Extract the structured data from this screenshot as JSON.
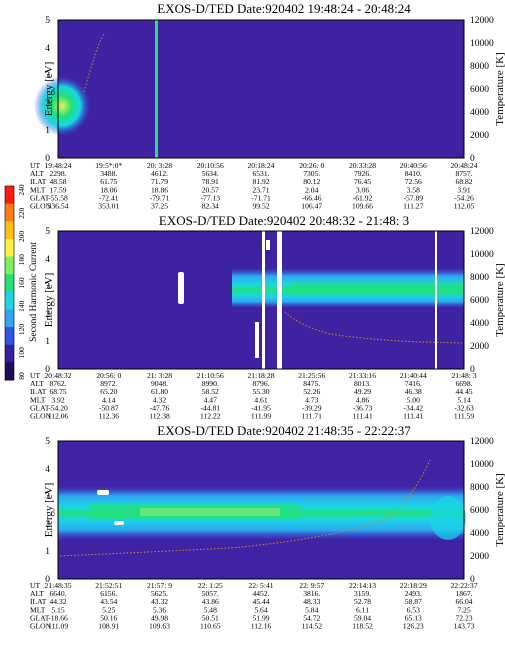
{
  "colors": {
    "background": "#3a1d9a",
    "noise": "#4b2db3",
    "dark_blue": "#2c1480",
    "blue": "#2f55e8",
    "cyan": "#19d6e6",
    "green": "#22e07a",
    "yellow": "#e6f25a",
    "white": "#ffffff",
    "temperature_trace": "#d08a2a"
  },
  "colorbar": {
    "label": "Second Harmonic Current",
    "ticks": [
      "240",
      "220",
      "200",
      "180",
      "160",
      "140",
      "120",
      "100",
      "80"
    ],
    "colors": [
      "#ff1a10",
      "#ff7a10",
      "#ffc010",
      "#fff040",
      "#7cf060",
      "#22e07a",
      "#19d6e6",
      "#2fa6f0",
      "#2f55e8",
      "#3a1d9a",
      "#220a5a"
    ]
  },
  "chart_data": [
    {
      "type": "heatmap",
      "title": "EXOS-D/TED   Date:920402  19:48:24 - 20:48:24",
      "ylabel": "Energy [eV]",
      "y2label": "Temperature [K]",
      "ylim": [
        0,
        5
      ],
      "y2lim": [
        0,
        12000
      ],
      "yticks": [
        "0",
        "1",
        "2",
        "3",
        "4",
        "5"
      ],
      "y2ticks": [
        "0",
        "2000",
        "4000",
        "6000",
        "8000",
        "10000",
        "12000"
      ],
      "table_labels": [
        "UT",
        "ALT",
        "ILAT",
        "MLT",
        "GLAT",
        "GLON"
      ],
      "table": [
        [
          "19:48:24",
          "19:5*:0*",
          "20: 3:28",
          "20:10:56",
          "20:18:24",
          "20:26: 0",
          "20:33:28",
          "20:40:56",
          "20:48:24"
        ],
        [
          "2298.",
          "3488.",
          "4612.",
          "5634.",
          "6531.",
          "7305.",
          "7926.",
          "8410.",
          "8757."
        ],
        [
          "48.58",
          "61.75",
          "71.79",
          "78.91",
          "81.92",
          "80.12",
          "76.45",
          "72.56",
          "68.82"
        ],
        [
          "17.59",
          "18.06",
          "18.86",
          "20.57",
          "23.71",
          "2.04",
          "3.06",
          "3.58",
          "3.91"
        ],
        [
          "-55.58",
          "-72.41",
          "-79.71",
          "-77.13",
          "-71.71",
          "-66.46",
          "-61.92",
          "-57.89",
          "-54.26"
        ],
        [
          "336.54",
          "353.01",
          "37.25",
          "82.34",
          "99.52",
          "106.47",
          "109.66",
          "111.27",
          "112.05"
        ]
      ]
    },
    {
      "type": "heatmap",
      "title": "EXOS-D/TED   Date:920402  20:48:32 - 21:48: 3",
      "ylabel": "Energy [eV]",
      "y2label": "Temperature [K]",
      "ylim": [
        0,
        5
      ],
      "y2lim": [
        0,
        12000
      ],
      "yticks": [
        "0",
        "1",
        "2",
        "3",
        "4",
        "5"
      ],
      "y2ticks": [
        "0",
        "2000",
        "4000",
        "6000",
        "8000",
        "10000",
        "12000"
      ],
      "table_labels": [
        "UT",
        "ALT",
        "ILAT",
        "MLT",
        "GLAT",
        "GLON"
      ],
      "table": [
        [
          "20:48:32",
          "20:56: 0",
          "21: 3:28",
          "21:10:56",
          "21:18:28",
          "21:25:56",
          "21:33:16",
          "21:40:44",
          "21:48: 3"
        ],
        [
          "8762.",
          "8972.",
          "9048.",
          "8990.",
          "8796.",
          "8475.",
          "8013.",
          "7416.",
          "6698."
        ],
        [
          "68.75",
          "65.20",
          "61.80",
          "58.52",
          "55.30",
          "52.26",
          "49.29",
          "46.38",
          "44.45"
        ],
        [
          "3.92",
          "4.14",
          "4.32",
          "4.47",
          "4.61",
          "4.73",
          "4.86",
          "5.00",
          "5.14"
        ],
        [
          "-54.20",
          "-50.87",
          "-47.76",
          "-44.81",
          "-41.95",
          "-39.29",
          "-36.73",
          "-34.42",
          "-32.63"
        ],
        [
          "112.06",
          "112.36",
          "112.38",
          "112.22",
          "111.99",
          "111.71",
          "111.41",
          "111.41",
          "111.59"
        ]
      ]
    },
    {
      "type": "heatmap",
      "title": "EXOS-D/TED   Date:920402  21:48:35 - 22:22:37",
      "ylabel": "Energy [eV]",
      "y2label": "Temperature [K]",
      "ylim": [
        0,
        5
      ],
      "y2lim": [
        0,
        12000
      ],
      "yticks": [
        "0",
        "1",
        "2",
        "3",
        "4",
        "5"
      ],
      "y2ticks": [
        "0",
        "2000",
        "4000",
        "6000",
        "8000",
        "10000",
        "12000"
      ],
      "table_labels": [
        "UT",
        "ALT",
        "ILAT",
        "MLT",
        "GLAT",
        "GLON"
      ],
      "table": [
        [
          "21:48:35",
          "21:52:51",
          "21:57: 9",
          "22: 1:25",
          "22: 5:41",
          "22: 9:57",
          "22:14:13",
          "22:18:29",
          "22:22:37"
        ],
        [
          "6640.",
          "6156.",
          "5625.",
          "5057.",
          "4452.",
          "3816.",
          "3159.",
          "2493.",
          "1867."
        ],
        [
          "44.32",
          "43.54",
          "43.32",
          "43.86",
          "45.44",
          "48.33",
          "52.78",
          "58.87",
          "66.04"
        ],
        [
          "5.15",
          "5.25",
          "5.36",
          "5.48",
          "5.64",
          "5.84",
          "6.11",
          "6.53",
          "7.25"
        ],
        [
          "-18.66",
          "50.16",
          "49.98",
          "50.51",
          "51.99",
          "54.72",
          "59.04",
          "65.13",
          "72.23"
        ],
        [
          "111.09",
          "108.91",
          "109.63",
          "110.65",
          "112.16",
          "114.52",
          "118.52",
          "126.23",
          "143.73"
        ]
      ]
    }
  ]
}
